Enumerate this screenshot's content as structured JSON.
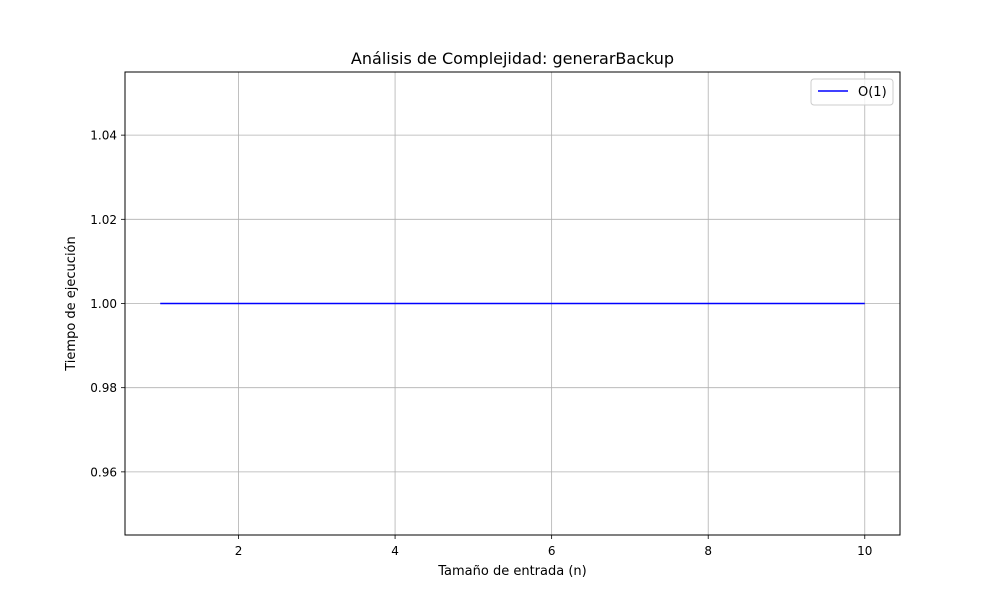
{
  "chart_data": {
    "type": "line",
    "title": "Análisis de Complejidad: generarBackup",
    "xlabel": "Tamaño de entrada (n)",
    "ylabel": "Tiempo de ejecución",
    "xlim": [
      0.55,
      10.45
    ],
    "ylim": [
      0.945,
      1.055
    ],
    "x_ticks": [
      2,
      4,
      6,
      8,
      10
    ],
    "y_ticks": [
      0.96,
      0.98,
      1.0,
      1.02,
      1.04
    ],
    "x_tick_labels": [
      "2",
      "4",
      "6",
      "8",
      "10"
    ],
    "y_tick_labels": [
      "0.96",
      "0.98",
      "1.00",
      "1.02",
      "1.04"
    ],
    "grid": true,
    "legend_position": "top-right",
    "series": [
      {
        "name": "O(1)",
        "color": "#0000ff",
        "x": [
          1,
          2,
          3,
          4,
          5,
          6,
          7,
          8,
          9,
          10
        ],
        "y": [
          1,
          1,
          1,
          1,
          1,
          1,
          1,
          1,
          1,
          1
        ]
      }
    ]
  }
}
